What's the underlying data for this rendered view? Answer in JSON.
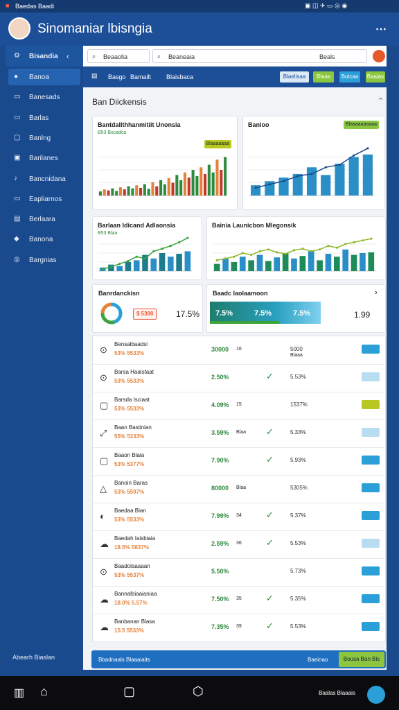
{
  "status_bar": {
    "carrier": "Baedas Baadi"
  },
  "header": {
    "title": "Sinomaniar lbisngia"
  },
  "sidebar": {
    "title": "Bisandia",
    "items": [
      "Banoa",
      "Banesads",
      "Barlas",
      "Banlng",
      "Barilanes",
      "Bancnidana",
      "Eapliarnos",
      "Berlaara",
      "Banona",
      "Bargnias"
    ],
    "footer": "Abearh Biaslan"
  },
  "search": {
    "left": "Beaaolia",
    "right": "Beaneaia",
    "user": "Beals"
  },
  "toolbar": {
    "labels": [
      "Basgo",
      "Bamallt",
      "Blaisbaca"
    ],
    "buttons": [
      {
        "label": "Blaelisaa",
        "color": "#dbe9f7"
      },
      {
        "label": "Blaas",
        "color": "#8cc63f"
      },
      {
        "label": "Bolcaa",
        "color": "#2a9fd8"
      },
      {
        "label": "Baalas",
        "color": "#8cc63f"
      }
    ]
  },
  "section_title": "Ban Diickensis",
  "charts": [
    {
      "title": "Bantdallthhanmitiit Unonsia",
      "subtitle": "B53 Bscadca",
      "badge": "Blaaaaaaa",
      "type": "bar",
      "values": [
        8,
        12,
        10,
        14,
        9,
        16,
        12,
        18,
        14,
        20,
        15,
        22,
        13,
        26,
        18,
        30,
        22,
        34,
        25,
        40,
        30,
        45,
        35,
        50,
        38,
        55,
        42,
        60,
        45,
        70,
        50,
        75
      ],
      "colors": [
        "#2e8b3e",
        "#e5823a",
        "#c0392b",
        "#2e8b3e"
      ],
      "ylim": [
        0,
        100
      ]
    },
    {
      "title": "Banloo",
      "badge": "Blaaaaaaaaaa",
      "type": "bar",
      "values": [
        20,
        28,
        35,
        42,
        55,
        40,
        62,
        75,
        80
      ],
      "colors": [
        "#2a8fc6"
      ],
      "line": {
        "values": [
          15,
          22,
          28,
          38,
          42,
          55,
          60,
          78,
          92
        ],
        "color": "#1b4a8c"
      },
      "ylim": [
        0,
        100
      ]
    },
    {
      "title": "Barlaan Idicand Adlaonsia",
      "subtitle": "B53 Blaa",
      "type": "bar",
      "values": [
        10,
        18,
        14,
        25,
        30,
        45,
        35,
        50,
        40,
        48,
        55
      ],
      "colors": [
        "#2a8fc6",
        "#1e7d8c"
      ],
      "line": {
        "values": [
          5,
          12,
          20,
          28,
          40,
          35,
          55,
          62,
          70,
          80,
          92
        ],
        "color": "#3aa33a"
      },
      "ylim": [
        0,
        100
      ]
    },
    {
      "title": "Bainia Launicbon Mlegonsik",
      "type": "bar",
      "values": [
        20,
        35,
        25,
        40,
        30,
        45,
        28,
        38,
        50,
        35,
        42,
        55,
        30,
        48,
        40,
        60,
        45,
        50,
        52
      ],
      "colors": [
        "#1e8c5a",
        "#2a8fc6"
      ],
      "line": {
        "values": [
          30,
          35,
          40,
          50,
          45,
          55,
          60,
          52,
          48,
          58,
          62,
          55,
          60,
          70,
          65,
          75,
          80,
          85,
          90
        ],
        "color": "#8fb82a"
      },
      "ylim": [
        0,
        100
      ]
    }
  ],
  "summary": {
    "left": {
      "title": "Banrdanckisn",
      "badge": "$ 5390",
      "value": "17.5%",
      "donut": {
        "values": [
          45,
          30,
          25
        ],
        "colors": [
          "#2a9fd8",
          "#3aa33a",
          "#e5823a"
        ]
      }
    },
    "right": {
      "title": "Baadc Iaolaamoon",
      "cells": [
        "7.5%",
        "7.5%",
        "7.5%"
      ],
      "value": "1.99"
    }
  },
  "table": {
    "rows": [
      {
        "name": "Bensalbaadsi",
        "sub": "53% 5533%",
        "value": "30000",
        "col": "16",
        "stat": "5000",
        "stat2": "Blaaa",
        "check": false,
        "button": "#2a9fd8"
      },
      {
        "name": "Barsa Haalstaat",
        "sub": "53% 5533%",
        "value": "2.50%",
        "col": "",
        "stat": "5.53%",
        "stat2": "",
        "check": true,
        "button": "#b8dcf0"
      },
      {
        "name": "Barsda Isciaat",
        "sub": "53% 5533%",
        "value": "4.09%",
        "col": "15",
        "stat": "1537%",
        "stat2": "",
        "check": false,
        "button": "#b8c820"
      },
      {
        "name": "Baan Bastinian",
        "sub": "55% 5333%",
        "value": "3.59%",
        "col": "Blaa",
        "stat": "5.33%",
        "stat2": "",
        "check": true,
        "button": "#b8dcf0"
      },
      {
        "name": "Baaon Blaia",
        "sub": "53% 5377%",
        "value": "7.90%",
        "col": "",
        "stat": "5.93%",
        "stat2": "",
        "check": true,
        "button": "#2a9fd8"
      },
      {
        "name": "Banoin Baras",
        "sub": "53% 5597%",
        "value": "80000",
        "col": "Blaa",
        "stat": "5305%",
        "stat2": "",
        "check": false,
        "button": "#2a9fd8"
      },
      {
        "name": "Baedaa Bian",
        "sub": "53% 5533%",
        "value": "7.99%",
        "col": "34",
        "stat": "5.37%",
        "stat2": "",
        "check": true,
        "button": "#2a9fd8"
      },
      {
        "name": "Baedah Iaisbiaia",
        "sub": "18.5% 5837%",
        "value": "2.59%",
        "col": "36",
        "stat": "5.53%",
        "stat2": "",
        "check": true,
        "button": "#b8dcf0"
      },
      {
        "name": "Baadolaaaaan",
        "sub": "53% 5537%",
        "value": "5.50%",
        "col": "",
        "stat": "5.73%",
        "stat2": "",
        "check": false,
        "button": "#2a9fd8"
      },
      {
        "name": "Bannalbiaaianiaa",
        "sub": "18.0% 5.57%",
        "value": "7.50%",
        "col": "35",
        "stat": "5.35%",
        "stat2": "",
        "check": true,
        "button": "#2a9fd8"
      },
      {
        "name": "Banbanan Blasa",
        "sub": "15.5 5533%",
        "value": "7.35%",
        "col": "39",
        "stat": "5.53%",
        "stat2": "",
        "check": true,
        "button": "#2a9fd8"
      }
    ]
  },
  "footer_bar": {
    "left": "Bbadnaals Blaaaiaits",
    "right": "Baeinao",
    "button": "Bousa Ban Bis"
  },
  "nav": {
    "right": "Baalas Blaaais"
  }
}
